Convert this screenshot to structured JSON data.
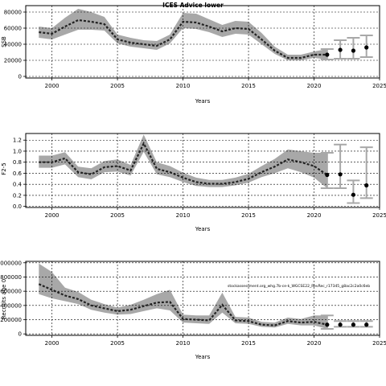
{
  "chart_data": [
    {
      "type": "line",
      "title": "ICES Advice lower",
      "xlabel": "Years",
      "ylabel": "SSB",
      "xlim": [
        1998,
        2025
      ],
      "ylim": [
        -2000,
        88000
      ],
      "x_ticks": [
        "2000",
        "2005",
        "2010",
        "2015",
        "2020",
        "2025"
      ],
      "y_ticks": [
        "0",
        "20000",
        "40000",
        "60000",
        "80000"
      ],
      "grid": true,
      "series": [
        {
          "x": [
            1999,
            2000,
            2001,
            2002,
            2003,
            2004,
            2005,
            2006,
            2007,
            2008,
            2009,
            2010,
            2011,
            2012,
            2013,
            2014,
            2015,
            2016,
            2017,
            2018,
            2019,
            2020,
            2021
          ],
          "y": [
            55000,
            53000,
            62000,
            70000,
            68000,
            65000,
            46000,
            42000,
            40000,
            38000,
            46000,
            68000,
            67000,
            62000,
            56000,
            60000,
            59000,
            46000,
            32000,
            23000,
            23000,
            27000,
            27000
          ],
          "lower": [
            48000,
            46000,
            52000,
            58000,
            58000,
            57000,
            41000,
            37000,
            35000,
            33000,
            41000,
            60000,
            59000,
            55000,
            49000,
            53000,
            52000,
            40000,
            28000,
            20000,
            20000,
            23000,
            21000
          ],
          "upper": [
            62000,
            60000,
            73000,
            84000,
            80000,
            74000,
            52000,
            48000,
            45000,
            44000,
            52000,
            79000,
            78000,
            71000,
            64000,
            69000,
            68000,
            54000,
            37000,
            27000,
            27000,
            31000,
            34000
          ]
        }
      ],
      "projection": [
        {
          "x": 2021,
          "y": 27000,
          "lower": 21000,
          "upper": 34000
        },
        {
          "x": 2022,
          "y": 33000,
          "lower": 22000,
          "upper": 45000
        },
        {
          "x": 2023,
          "y": 32000,
          "lower": 22000,
          "upper": 48000
        },
        {
          "x": 2024,
          "y": 36000,
          "lower": 24000,
          "upper": 51000
        }
      ]
    },
    {
      "type": "line",
      "title": "",
      "xlabel": "Years",
      "ylabel": "F2-5",
      "xlim": [
        1998,
        2025
      ],
      "ylim": [
        -0.02,
        1.32
      ],
      "x_ticks": [
        "2000",
        "2005",
        "2010",
        "2015",
        "2020",
        "2025"
      ],
      "y_ticks": [
        "0.0",
        "0.2",
        "0.4",
        "0.6",
        "0.8",
        "1.0",
        "1.2"
      ],
      "grid": true,
      "series": [
        {
          "x": [
            1999,
            2000,
            2001,
            2002,
            2003,
            2004,
            2005,
            2006,
            2007,
            2008,
            2009,
            2010,
            2011,
            2012,
            2013,
            2014,
            2015,
            2016,
            2017,
            2018,
            2019,
            2020,
            2021
          ],
          "y": [
            0.8,
            0.8,
            0.87,
            0.62,
            0.58,
            0.71,
            0.73,
            0.65,
            1.14,
            0.68,
            0.62,
            0.52,
            0.44,
            0.41,
            0.41,
            0.44,
            0.5,
            0.62,
            0.72,
            0.85,
            0.8,
            0.73,
            0.57
          ],
          "lower": [
            0.7,
            0.7,
            0.76,
            0.53,
            0.49,
            0.62,
            0.63,
            0.56,
            0.99,
            0.58,
            0.53,
            0.44,
            0.37,
            0.35,
            0.35,
            0.38,
            0.43,
            0.53,
            0.6,
            0.69,
            0.62,
            0.52,
            0.33
          ],
          "upper": [
            0.92,
            0.92,
            0.98,
            0.72,
            0.69,
            0.82,
            0.85,
            0.75,
            1.3,
            0.8,
            0.73,
            0.61,
            0.52,
            0.48,
            0.48,
            0.52,
            0.59,
            0.73,
            0.86,
            1.03,
            1.0,
            0.97,
            0.97
          ]
        }
      ],
      "projection": [
        {
          "x": 2021,
          "y": 0.57,
          "lower": 0.33,
          "upper": 0.97
        },
        {
          "x": 2022,
          "y": 0.58,
          "lower": 0.33,
          "upper": 1.12
        },
        {
          "x": 2023,
          "y": 0.21,
          "lower": 0.06,
          "upper": 0.47
        },
        {
          "x": 2024,
          "y": 0.38,
          "lower": 0.15,
          "upper": 1.07
        }
      ]
    },
    {
      "type": "line",
      "title": "",
      "xlabel": "Years",
      "ylabel": "Recruits age 0",
      "xlim": [
        1998,
        2025
      ],
      "ylim": [
        -20000,
        1020000
      ],
      "x_ticks": [
        "2000",
        "2005",
        "2010",
        "2015",
        "2020",
        "2025"
      ],
      "y_ticks": [
        "0",
        "200000",
        "400000",
        "600000",
        "800000",
        "1000000"
      ],
      "grid": true,
      "annotation": "stockassessment.org_whg.7b-ce-k_WGCSE22_RevRec_r17345_g8ac2c2a0c6eb",
      "series": [
        {
          "x": [
            1999,
            2000,
            2001,
            2002,
            2003,
            2004,
            2005,
            2006,
            2007,
            2008,
            2009,
            2010,
            2011,
            2012,
            2013,
            2014,
            2015,
            2016,
            2017,
            2018,
            2019,
            2020,
            2021
          ],
          "y": [
            700000,
            620000,
            540000,
            490000,
            400000,
            360000,
            320000,
            340000,
            390000,
            440000,
            450000,
            210000,
            200000,
            190000,
            410000,
            190000,
            180000,
            130000,
            120000,
            180000,
            160000,
            170000,
            130000
          ],
          "lower": [
            560000,
            500000,
            460000,
            420000,
            340000,
            300000,
            270000,
            280000,
            320000,
            360000,
            330000,
            160000,
            150000,
            140000,
            300000,
            150000,
            140000,
            100000,
            90000,
            140000,
            120000,
            120000,
            70000
          ],
          "upper": [
            990000,
            870000,
            650000,
            590000,
            480000,
            420000,
            370000,
            410000,
            480000,
            560000,
            620000,
            270000,
            260000,
            260000,
            580000,
            240000,
            230000,
            170000,
            160000,
            230000,
            210000,
            260000,
            260000
          ]
        }
      ],
      "projection": [
        {
          "x": 2021,
          "y": 130000,
          "lower": 70000,
          "upper": 260000
        },
        {
          "x": 2022,
          "y": 130000,
          "lower": 100000,
          "upper": 180000
        },
        {
          "x": 2023,
          "y": 130000,
          "lower": 100000,
          "upper": 180000
        },
        {
          "x": 2024,
          "y": 130000,
          "lower": 100000,
          "upper": 180000
        }
      ]
    }
  ]
}
